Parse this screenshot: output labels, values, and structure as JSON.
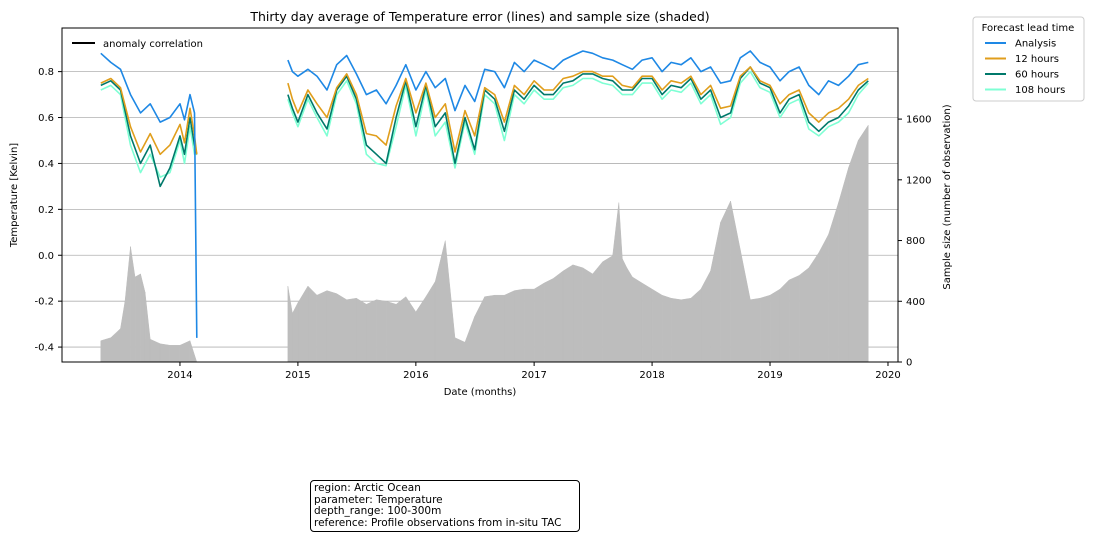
{
  "chart_data": {
    "type": "line",
    "title": "Thirty day average of Temperature error (lines) and sample size (shaded)",
    "xlabel": "Date (months)",
    "ylabel": "Temperature [Kelvin]",
    "y2label": "Sample size (number of observation)",
    "xlim": [
      "2013-01-01",
      "2020-02-01"
    ],
    "ylim": [
      -0.465,
      0.99
    ],
    "y2lim": [
      0,
      2200
    ],
    "x_ticks": [
      "2014",
      "2015",
      "2016",
      "2017",
      "2018",
      "2019",
      "2020"
    ],
    "y_ticks": [
      "-0.4",
      "-0.2",
      "0.0",
      "0.2",
      "0.4",
      "0.6",
      "0.8"
    ],
    "y2_ticks": [
      "0",
      "400",
      "800",
      "1200",
      "1600"
    ],
    "grid": "horizontal",
    "legend_title": "Forecast lead time",
    "legend_placement": "outside top-right",
    "corr_legend_label": "anomaly correlation",
    "corr_legend_placement": "top-left",
    "x": [
      "2013-05-01",
      "2013-06-01",
      "2013-07-01",
      "2013-08-01",
      "2013-09-01",
      "2013-10-01",
      "2013-11-01",
      "2013-12-01",
      "2014-01-01",
      "2014-01-15",
      "2014-02-01",
      "2014-02-15",
      "2014-02-22",
      "2014-12-01",
      "2014-12-15",
      "2015-01-01",
      "2015-02-01",
      "2015-03-01",
      "2015-04-01",
      "2015-05-01",
      "2015-06-01",
      "2015-07-01",
      "2015-08-01",
      "2015-09-01",
      "2015-10-01",
      "2015-11-01",
      "2015-12-01",
      "2016-01-01",
      "2016-02-01",
      "2016-03-01",
      "2016-04-01",
      "2016-05-01",
      "2016-06-01",
      "2016-07-01",
      "2016-08-01",
      "2016-09-01",
      "2016-10-01",
      "2016-11-01",
      "2016-12-01",
      "2017-01-01",
      "2017-02-01",
      "2017-03-01",
      "2017-04-01",
      "2017-05-01",
      "2017-06-01",
      "2017-07-01",
      "2017-08-01",
      "2017-09-01",
      "2017-10-01",
      "2017-11-01",
      "2017-12-01",
      "2018-01-01",
      "2018-02-01",
      "2018-03-01",
      "2018-04-01",
      "2018-05-01",
      "2018-06-01",
      "2018-07-01",
      "2018-08-01",
      "2018-09-01",
      "2018-10-01",
      "2018-11-01",
      "2018-12-01",
      "2019-01-01",
      "2019-02-01",
      "2019-03-01",
      "2019-04-01",
      "2019-05-01",
      "2019-06-01",
      "2019-07-01",
      "2019-08-01",
      "2019-09-01",
      "2019-10-01",
      "2019-11-01"
    ],
    "series": [
      {
        "name": "Analysis",
        "color": "#1e88e5",
        "values": [
          0.88,
          0.84,
          0.81,
          0.7,
          0.62,
          0.66,
          0.58,
          0.6,
          0.66,
          0.59,
          0.7,
          0.62,
          -0.36,
          0.85,
          0.8,
          0.78,
          0.81,
          0.78,
          0.72,
          0.83,
          0.87,
          0.79,
          0.7,
          0.72,
          0.66,
          0.74,
          0.83,
          0.72,
          0.8,
          0.73,
          0.77,
          0.63,
          0.74,
          0.67,
          0.81,
          0.8,
          0.73,
          0.84,
          0.8,
          0.85,
          0.83,
          0.81,
          0.85,
          0.87,
          0.89,
          0.88,
          0.86,
          0.85,
          0.83,
          0.81,
          0.85,
          0.86,
          0.8,
          0.84,
          0.83,
          0.86,
          0.8,
          0.82,
          0.75,
          0.76,
          0.86,
          0.89,
          0.84,
          0.82,
          0.76,
          0.8,
          0.82,
          0.74,
          0.7,
          0.76,
          0.74,
          0.78,
          0.83,
          0.84
        ]
      },
      {
        "name": "12 hours",
        "color": "#e09e1c",
        "values": [
          0.75,
          0.77,
          0.73,
          0.56,
          0.45,
          0.53,
          0.44,
          0.48,
          0.57,
          0.49,
          0.64,
          0.52,
          0.44,
          0.75,
          0.68,
          0.62,
          0.72,
          0.66,
          0.6,
          0.73,
          0.79,
          0.7,
          0.53,
          0.52,
          0.48,
          0.65,
          0.77,
          0.62,
          0.75,
          0.6,
          0.66,
          0.45,
          0.63,
          0.52,
          0.73,
          0.7,
          0.58,
          0.74,
          0.7,
          0.76,
          0.72,
          0.72,
          0.77,
          0.78,
          0.8,
          0.8,
          0.78,
          0.78,
          0.74,
          0.73,
          0.78,
          0.78,
          0.72,
          0.76,
          0.75,
          0.78,
          0.7,
          0.74,
          0.64,
          0.65,
          0.78,
          0.82,
          0.76,
          0.74,
          0.66,
          0.7,
          0.72,
          0.62,
          0.58,
          0.62,
          0.64,
          0.68,
          0.74,
          0.77
        ]
      },
      {
        "name": "60 hours",
        "color": "#00796b",
        "values": [
          0.74,
          0.76,
          0.72,
          0.52,
          0.4,
          0.48,
          0.3,
          0.38,
          0.52,
          0.44,
          0.6,
          0.48,
          0.44,
          0.7,
          0.64,
          0.58,
          0.7,
          0.62,
          0.55,
          0.72,
          0.78,
          0.68,
          0.48,
          0.44,
          0.4,
          0.6,
          0.76,
          0.56,
          0.74,
          0.56,
          0.62,
          0.4,
          0.6,
          0.46,
          0.72,
          0.68,
          0.54,
          0.72,
          0.68,
          0.74,
          0.7,
          0.7,
          0.75,
          0.76,
          0.79,
          0.79,
          0.77,
          0.76,
          0.72,
          0.72,
          0.77,
          0.77,
          0.7,
          0.74,
          0.73,
          0.77,
          0.68,
          0.72,
          0.6,
          0.62,
          0.77,
          0.82,
          0.75,
          0.73,
          0.62,
          0.68,
          0.7,
          0.58,
          0.54,
          0.58,
          0.6,
          0.65,
          0.72,
          0.76
        ]
      },
      {
        "name": "108 hours",
        "color": "#7fffd4",
        "values": [
          0.72,
          0.74,
          0.7,
          0.48,
          0.36,
          0.44,
          0.34,
          0.36,
          0.5,
          0.4,
          0.56,
          0.44,
          0.44,
          0.68,
          0.62,
          0.56,
          0.68,
          0.6,
          0.52,
          0.7,
          0.76,
          0.66,
          0.44,
          0.4,
          0.39,
          0.56,
          0.74,
          0.52,
          0.72,
          0.52,
          0.58,
          0.38,
          0.58,
          0.44,
          0.7,
          0.66,
          0.5,
          0.7,
          0.66,
          0.72,
          0.68,
          0.68,
          0.73,
          0.74,
          0.77,
          0.77,
          0.75,
          0.74,
          0.7,
          0.7,
          0.75,
          0.75,
          0.68,
          0.72,
          0.71,
          0.75,
          0.66,
          0.7,
          0.57,
          0.6,
          0.75,
          0.8,
          0.73,
          0.71,
          0.6,
          0.66,
          0.68,
          0.55,
          0.52,
          0.56,
          0.58,
          0.62,
          0.7,
          0.75
        ]
      }
    ],
    "sample_size": {
      "color": "#bdbdbd",
      "x": [
        "2013-05-01",
        "2013-06-01",
        "2013-07-01",
        "2013-07-15",
        "2013-08-01",
        "2013-08-15",
        "2013-09-01",
        "2013-09-15",
        "2013-10-01",
        "2013-11-01",
        "2013-12-01",
        "2014-01-01",
        "2014-02-01",
        "2014-02-22",
        "2014-12-01",
        "2014-12-15",
        "2015-01-01",
        "2015-02-01",
        "2015-03-01",
        "2015-04-01",
        "2015-05-01",
        "2015-06-01",
        "2015-07-01",
        "2015-08-01",
        "2015-09-01",
        "2015-10-01",
        "2015-11-01",
        "2015-12-01",
        "2016-01-01",
        "2016-02-01",
        "2016-03-01",
        "2016-04-01",
        "2016-05-01",
        "2016-06-01",
        "2016-07-01",
        "2016-08-01",
        "2016-09-01",
        "2016-10-01",
        "2016-11-01",
        "2016-12-01",
        "2017-01-01",
        "2017-02-01",
        "2017-03-01",
        "2017-04-01",
        "2017-05-01",
        "2017-06-01",
        "2017-07-01",
        "2017-08-01",
        "2017-09-01",
        "2017-09-20",
        "2017-10-01",
        "2017-10-15",
        "2017-11-01",
        "2017-12-01",
        "2018-01-01",
        "2018-02-01",
        "2018-03-01",
        "2018-04-01",
        "2018-05-01",
        "2018-06-01",
        "2018-07-01",
        "2018-08-01",
        "2018-09-01",
        "2018-10-01",
        "2018-11-01",
        "2018-12-01",
        "2019-01-01",
        "2019-02-01",
        "2019-03-01",
        "2019-04-01",
        "2019-05-01",
        "2019-06-01",
        "2019-07-01",
        "2019-08-01",
        "2019-09-01",
        "2019-10-01",
        "2019-11-01"
      ],
      "values": [
        140,
        160,
        220,
        400,
        760,
        560,
        580,
        460,
        150,
        120,
        110,
        110,
        140,
        0,
        500,
        320,
        390,
        500,
        440,
        470,
        450,
        410,
        420,
        380,
        410,
        400,
        380,
        430,
        330,
        430,
        530,
        800,
        160,
        130,
        300,
        430,
        440,
        440,
        470,
        480,
        480,
        520,
        550,
        600,
        640,
        620,
        580,
        660,
        700,
        1050,
        680,
        620,
        560,
        520,
        480,
        440,
        420,
        410,
        420,
        480,
        600,
        920,
        1060,
        740,
        410,
        420,
        440,
        480,
        540,
        570,
        620,
        720,
        840,
        1050,
        1280,
        1460,
        1560
      ]
    }
  },
  "info_box": {
    "lines": [
      "region: Arctic Ocean",
      "parameter: Temperature",
      "depth_range: 100-300m",
      "reference: Profile observations from in-situ TAC"
    ]
  }
}
